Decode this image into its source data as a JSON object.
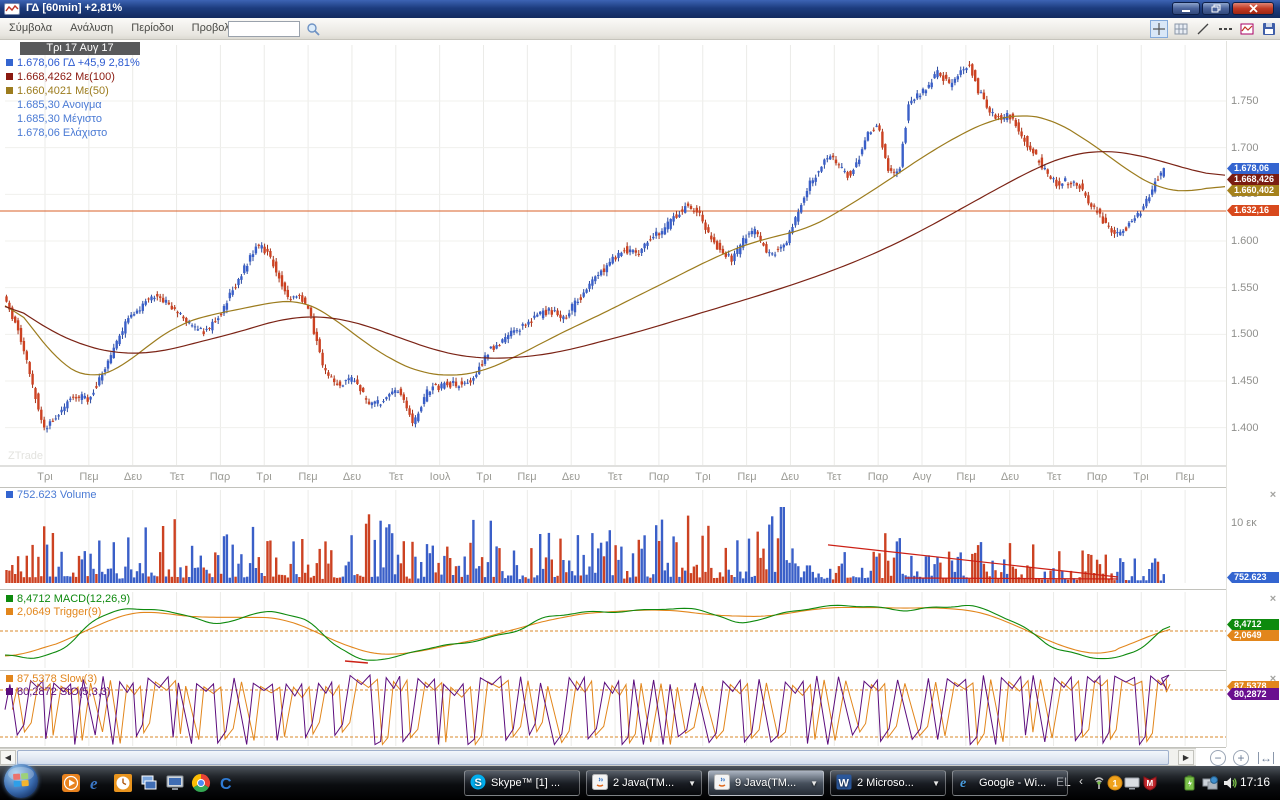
{
  "window": {
    "title": "ΓΔ [60min] +2,81%"
  },
  "menu": {
    "items": [
      "Σύμβολα",
      "Ανάλυση",
      "Περίοδοι",
      "Προβολή"
    ],
    "search_value": ""
  },
  "toolbar": {
    "icons": [
      "crosshair",
      "grid",
      "trendline",
      "dashed-line",
      "chart",
      "save"
    ]
  },
  "watermark": "ZTrade",
  "colors": {
    "up": "#3a5fc8",
    "down": "#cc4222",
    "up_wick": "#2b4a9e",
    "down_wick": "#a33318",
    "ma50": "#9c7c1e",
    "ma100": "#7b2315",
    "level_line": "#d8602a",
    "macd": "#0e8a0e",
    "trigger": "#e2861c",
    "sto": "#5c0d7d",
    "slow": "#e2861c",
    "trend_red": "#cc2015",
    "grid": "#ebebe8",
    "hgrid": "#f0f0ed"
  },
  "legend": {
    "date": "Τρι 17 Αυγ 17",
    "rows": [
      {
        "swatch": "#3465d0",
        "color": "#2d5bd0",
        "text": "1.678,06 ΓΔ +45,9 2,81%"
      },
      {
        "swatch": "#8b1a10",
        "color": "#8b1a10",
        "text": "1.668,4262 Με(100)"
      },
      {
        "swatch": "#9c7c1e",
        "color": "#9c7c1e",
        "text": "1.660,4021 Με(50)"
      },
      {
        "color": "#4a7ad4",
        "text": "1.685,30 Ανοιγμα"
      },
      {
        "color": "#4a7ad4",
        "text": "1.685,30 Μέγιστο"
      },
      {
        "color": "#4a7ad4",
        "text": "1.678,06 Ελάχιστο"
      }
    ]
  },
  "price_axis": {
    "ticks": [
      {
        "label": "1.750",
        "value": 1750
      },
      {
        "label": "1.700",
        "value": 1700
      },
      {
        "label": "1.650",
        "value": 1650
      },
      {
        "label": "1.600",
        "value": 1600
      },
      {
        "label": "1.550",
        "value": 1550
      },
      {
        "label": "1.500",
        "value": 1500
      },
      {
        "label": "1.450",
        "value": 1450
      },
      {
        "label": "1.400",
        "value": 1400
      }
    ],
    "tags": [
      {
        "label": "1.678,06",
        "value": 1678.06,
        "bg": "#3465d0"
      },
      {
        "label": "1.668,426",
        "value": 1668.43,
        "bg": "#7b1d12"
      },
      {
        "label": "1.660,402",
        "value": 1660.4,
        "bg": "#a5821c"
      },
      {
        "label": "1.632,16",
        "value": 1632.16,
        "bg": "#d8491d"
      }
    ]
  },
  "x_axis": {
    "labels": [
      "Τρι",
      "Πεμ",
      "Δευ",
      "Τετ",
      "Παρ",
      "Τρι",
      "Πεμ",
      "Δευ",
      "Τετ",
      "Ιουλ",
      "Τρι",
      "Πεμ",
      "Δευ",
      "Τετ",
      "Παρ",
      "Τρι",
      "Πεμ",
      "Δευ",
      "Τετ",
      "Παρ",
      "Αυγ",
      "Πεμ",
      "Δευ",
      "Τετ",
      "Παρ",
      "Τρι",
      "Πεμ"
    ]
  },
  "volume_panel": {
    "legend": "752.623 Volume",
    "legend_color": "#4a7ad4",
    "scale_label": "10 εκ",
    "tag": {
      "label": "752.623",
      "bg": "#3465d0"
    }
  },
  "macd_panel": {
    "rows": [
      {
        "swatch": "#0e8a0e",
        "color": "#0e8a0e",
        "text": "8,4712 MACD(12,26,9)"
      },
      {
        "swatch": "#e2861c",
        "color": "#e2861c",
        "text": "2,0649 Trigger(9)"
      }
    ],
    "tags": [
      {
        "label": "8,4712",
        "bg": "#0e8a0e",
        "value": 8.4712
      },
      {
        "label": "2,0649",
        "bg": "#e2861c",
        "value": 2.0649
      }
    ]
  },
  "sto_panel": {
    "rows": [
      {
        "swatch": "#e2861c",
        "color": "#e2861c",
        "text": "87,5378 Slow(3)"
      },
      {
        "swatch": "#5c0d7d",
        "color": "#5c0d7d",
        "text": "80,2872 StO(5,3,3)"
      }
    ],
    "tags": [
      {
        "label": "87,5378",
        "bg": "#e2861c",
        "value": 87.5378
      },
      {
        "label": "80,2872",
        "bg": "#6a0f8f",
        "value": 80.2872
      }
    ]
  },
  "chart_controls": {
    "zoom_out": "−",
    "zoom_in": "+",
    "fit_width": "↔"
  },
  "taskbar": {
    "language": "EL",
    "chevron": "‹",
    "time": "17:16",
    "quick_launch": [
      "media-player",
      "internet-explorer",
      "clock",
      "window-switcher",
      "show-desktop",
      "chrome",
      "shell"
    ],
    "buttons": [
      {
        "app": "skype",
        "label": "Skype™ [1] ...",
        "dropdown": false,
        "active": false
      },
      {
        "app": "java",
        "label": "2 Java(TM...",
        "dropdown": true,
        "active": false
      },
      {
        "app": "java",
        "label": "9 Java(TM...",
        "dropdown": true,
        "active": true
      },
      {
        "app": "word",
        "label": "2 Microso...",
        "dropdown": true,
        "active": false
      },
      {
        "app": "ie",
        "label": "Google - Wi...",
        "dropdown": false,
        "active": false
      }
    ],
    "tray": [
      {
        "name": "signal"
      },
      {
        "name": "notification",
        "badge": "1"
      },
      {
        "name": "display"
      },
      {
        "name": "mcafee"
      },
      {
        "name": "battery"
      },
      {
        "name": "network"
      },
      {
        "name": "volume"
      }
    ]
  },
  "chart_data": [
    {
      "type": "candlestick",
      "title": "ΓΔ [60min]",
      "interval": "60min",
      "ylim": [
        1360,
        1810
      ],
      "last": {
        "close": 1678.06,
        "open": 1685.3,
        "high": 1685.3,
        "low": 1678.06,
        "change": 45.9,
        "change_pct": 2.81
      },
      "overlays": [
        {
          "name": "Με(100)",
          "last": 1668.4262
        },
        {
          "name": "Με(50)",
          "last": 1660.4021
        },
        {
          "name": "level",
          "value": 1632.16
        }
      ],
      "candle_count": 400,
      "t_end": 0.951,
      "price_anchors": [
        [
          0,
          1543
        ],
        [
          0.012,
          1505
        ],
        [
          0.033,
          1398
        ],
        [
          0.045,
          1414
        ],
        [
          0.057,
          1436
        ],
        [
          0.07,
          1430
        ],
        [
          0.086,
          1473
        ],
        [
          0.102,
          1516
        ],
        [
          0.119,
          1537
        ],
        [
          0.127,
          1543
        ],
        [
          0.139,
          1527
        ],
        [
          0.156,
          1505
        ],
        [
          0.168,
          1505
        ],
        [
          0.18,
          1527
        ],
        [
          0.193,
          1559
        ],
        [
          0.205,
          1591
        ],
        [
          0.211,
          1597
        ],
        [
          0.221,
          1575
        ],
        [
          0.234,
          1537
        ],
        [
          0.242,
          1543
        ],
        [
          0.25,
          1527
        ],
        [
          0.262,
          1462
        ],
        [
          0.275,
          1446
        ],
        [
          0.287,
          1452
        ],
        [
          0.299,
          1425
        ],
        [
          0.311,
          1430
        ],
        [
          0.324,
          1441
        ],
        [
          0.336,
          1404
        ],
        [
          0.348,
          1441
        ],
        [
          0.361,
          1446
        ],
        [
          0.373,
          1446
        ],
        [
          0.385,
          1452
        ],
        [
          0.398,
          1484
        ],
        [
          0.41,
          1495
        ],
        [
          0.422,
          1505
        ],
        [
          0.434,
          1516
        ],
        [
          0.447,
          1527
        ],
        [
          0.459,
          1516
        ],
        [
          0.471,
          1537
        ],
        [
          0.484,
          1559
        ],
        [
          0.496,
          1575
        ],
        [
          0.508,
          1591
        ],
        [
          0.52,
          1586
        ],
        [
          0.529,
          1602
        ],
        [
          0.541,
          1613
        ],
        [
          0.553,
          1629
        ],
        [
          0.561,
          1639
        ],
        [
          0.57,
          1629
        ],
        [
          0.578,
          1607
        ],
        [
          0.586,
          1591
        ],
        [
          0.598,
          1580
        ],
        [
          0.607,
          1602
        ],
        [
          0.615,
          1613
        ],
        [
          0.627,
          1586
        ],
        [
          0.635,
          1591
        ],
        [
          0.643,
          1602
        ],
        [
          0.652,
          1634
        ],
        [
          0.66,
          1660
        ],
        [
          0.668,
          1676
        ],
        [
          0.676,
          1692
        ],
        [
          0.684,
          1682
        ],
        [
          0.693,
          1671
        ],
        [
          0.701,
          1687
        ],
        [
          0.709,
          1719
        ],
        [
          0.717,
          1724
        ],
        [
          0.725,
          1676
        ],
        [
          0.734,
          1671
        ],
        [
          0.742,
          1751
        ],
        [
          0.75,
          1756
        ],
        [
          0.758,
          1767
        ],
        [
          0.766,
          1783
        ],
        [
          0.775,
          1767
        ],
        [
          0.783,
          1778
        ],
        [
          0.791,
          1790
        ],
        [
          0.799,
          1762
        ],
        [
          0.807,
          1740
        ],
        [
          0.816,
          1730
        ],
        [
          0.824,
          1735
        ],
        [
          0.832,
          1719
        ],
        [
          0.84,
          1703
        ],
        [
          0.848,
          1687
        ],
        [
          0.857,
          1671
        ],
        [
          0.865,
          1660
        ],
        [
          0.873,
          1665
        ],
        [
          0.881,
          1660
        ],
        [
          0.889,
          1644
        ],
        [
          0.898,
          1629
        ],
        [
          0.906,
          1613
        ],
        [
          0.914,
          1607
        ],
        [
          0.922,
          1618
        ],
        [
          0.93,
          1629
        ],
        [
          0.939,
          1649
        ],
        [
          0.947,
          1671
        ],
        [
          0.951,
          1678
        ]
      ],
      "ma50_anchors": [
        [
          0,
          1543
        ],
        [
          0.02,
          1511
        ],
        [
          0.045,
          1468
        ],
        [
          0.07,
          1452
        ],
        [
          0.094,
          1463
        ],
        [
          0.119,
          1490
        ],
        [
          0.143,
          1511
        ],
        [
          0.168,
          1521
        ],
        [
          0.193,
          1527
        ],
        [
          0.217,
          1534
        ],
        [
          0.242,
          1537
        ],
        [
          0.266,
          1521
        ],
        [
          0.291,
          1495
        ],
        [
          0.316,
          1473
        ],
        [
          0.34,
          1459
        ],
        [
          0.365,
          1455
        ],
        [
          0.389,
          1459
        ],
        [
          0.414,
          1473
        ],
        [
          0.439,
          1490
        ],
        [
          0.463,
          1506
        ],
        [
          0.488,
          1521
        ],
        [
          0.512,
          1537
        ],
        [
          0.537,
          1553
        ],
        [
          0.561,
          1569
        ],
        [
          0.586,
          1585
        ],
        [
          0.611,
          1598
        ],
        [
          0.635,
          1606
        ],
        [
          0.66,
          1614
        ],
        [
          0.684,
          1632
        ],
        [
          0.709,
          1652
        ],
        [
          0.734,
          1674
        ],
        [
          0.758,
          1695
        ],
        [
          0.783,
          1714
        ],
        [
          0.807,
          1729
        ],
        [
          0.832,
          1736
        ],
        [
          0.857,
          1731
        ],
        [
          0.881,
          1713
        ],
        [
          0.906,
          1690
        ],
        [
          0.926,
          1670
        ],
        [
          0.947,
          1656
        ],
        [
          0.967,
          1652
        ],
        [
          0.984,
          1656
        ],
        [
          1,
          1660.4
        ]
      ],
      "ma100_anchors": [
        [
          0,
          1537
        ],
        [
          0.029,
          1510
        ],
        [
          0.061,
          1489
        ],
        [
          0.094,
          1479
        ],
        [
          0.127,
          1481
        ],
        [
          0.16,
          1492
        ],
        [
          0.193,
          1503
        ],
        [
          0.225,
          1516
        ],
        [
          0.258,
          1520
        ],
        [
          0.291,
          1512
        ],
        [
          0.324,
          1496
        ],
        [
          0.357,
          1481
        ],
        [
          0.389,
          1474
        ],
        [
          0.422,
          1475
        ],
        [
          0.455,
          1481
        ],
        [
          0.488,
          1492
        ],
        [
          0.52,
          1503
        ],
        [
          0.553,
          1516
        ],
        [
          0.586,
          1529
        ],
        [
          0.619,
          1542
        ],
        [
          0.652,
          1556
        ],
        [
          0.684,
          1571
        ],
        [
          0.717,
          1589
        ],
        [
          0.75,
          1610
        ],
        [
          0.783,
          1634
        ],
        [
          0.816,
          1658
        ],
        [
          0.848,
          1680
        ],
        [
          0.872,
          1692
        ],
        [
          0.898,
          1697
        ],
        [
          0.922,
          1694
        ],
        [
          0.947,
          1686
        ],
        [
          0.972,
          1676
        ],
        [
          1,
          1668.4
        ]
      ]
    },
    {
      "type": "bar",
      "name": "Volume",
      "last_value": 752623,
      "scale_hint": "10 εκ",
      "spike_t": 0.638,
      "trendlines": [
        [
          0.6746,
          0.59,
          0.9123,
          0.935
        ],
        [
          0.7377,
          0.946,
          0.9123,
          0.957
        ]
      ]
    },
    {
      "type": "line",
      "name": "MACD(12,26,9)",
      "series": [
        {
          "name": "MACD",
          "last": 8.4712
        },
        {
          "name": "Trigger(9)",
          "last": 2.0649
        }
      ],
      "anchors": [
        [
          0,
          -33
        ],
        [
          0.02,
          -40
        ],
        [
          0.05,
          -26
        ],
        [
          0.07,
          15
        ],
        [
          0.1,
          33
        ],
        [
          0.12,
          29
        ],
        [
          0.15,
          22
        ],
        [
          0.17,
          8
        ],
        [
          0.2,
          22
        ],
        [
          0.22,
          29
        ],
        [
          0.25,
          12
        ],
        [
          0.27,
          -19
        ],
        [
          0.29,
          -40
        ],
        [
          0.32,
          -37
        ],
        [
          0.34,
          -26
        ],
        [
          0.37,
          -19
        ],
        [
          0.39,
          -12
        ],
        [
          0.42,
          1
        ],
        [
          0.44,
          18
        ],
        [
          0.47,
          25
        ],
        [
          0.49,
          26
        ],
        [
          0.52,
          29
        ],
        [
          0.54,
          32
        ],
        [
          0.57,
          29
        ],
        [
          0.59,
          18
        ],
        [
          0.6,
          8
        ],
        [
          0.62,
          18
        ],
        [
          0.64,
          26
        ],
        [
          0.66,
          32
        ],
        [
          0.69,
          35
        ],
        [
          0.71,
          33
        ],
        [
          0.74,
          29
        ],
        [
          0.76,
          33
        ],
        [
          0.79,
          35
        ],
        [
          0.81,
          26
        ],
        [
          0.84,
          1
        ],
        [
          0.86,
          -24
        ],
        [
          0.89,
          -37
        ],
        [
          0.91,
          -40
        ],
        [
          0.93,
          -26
        ],
        [
          0.95,
          4
        ],
        [
          0.955,
          8.47
        ]
      ],
      "red_segment": [
        0.2787,
        -41.7,
        0.2975,
        -44.4
      ]
    },
    {
      "type": "line",
      "name": "StO(5,3,3)",
      "series": [
        {
          "name": "Slow(3)",
          "last": 87.5378
        },
        {
          "name": "StO",
          "last": 80.2872
        }
      ],
      "range": [
        0,
        100
      ],
      "levels": [
        80,
        20
      ],
      "seed": 7
    }
  ]
}
